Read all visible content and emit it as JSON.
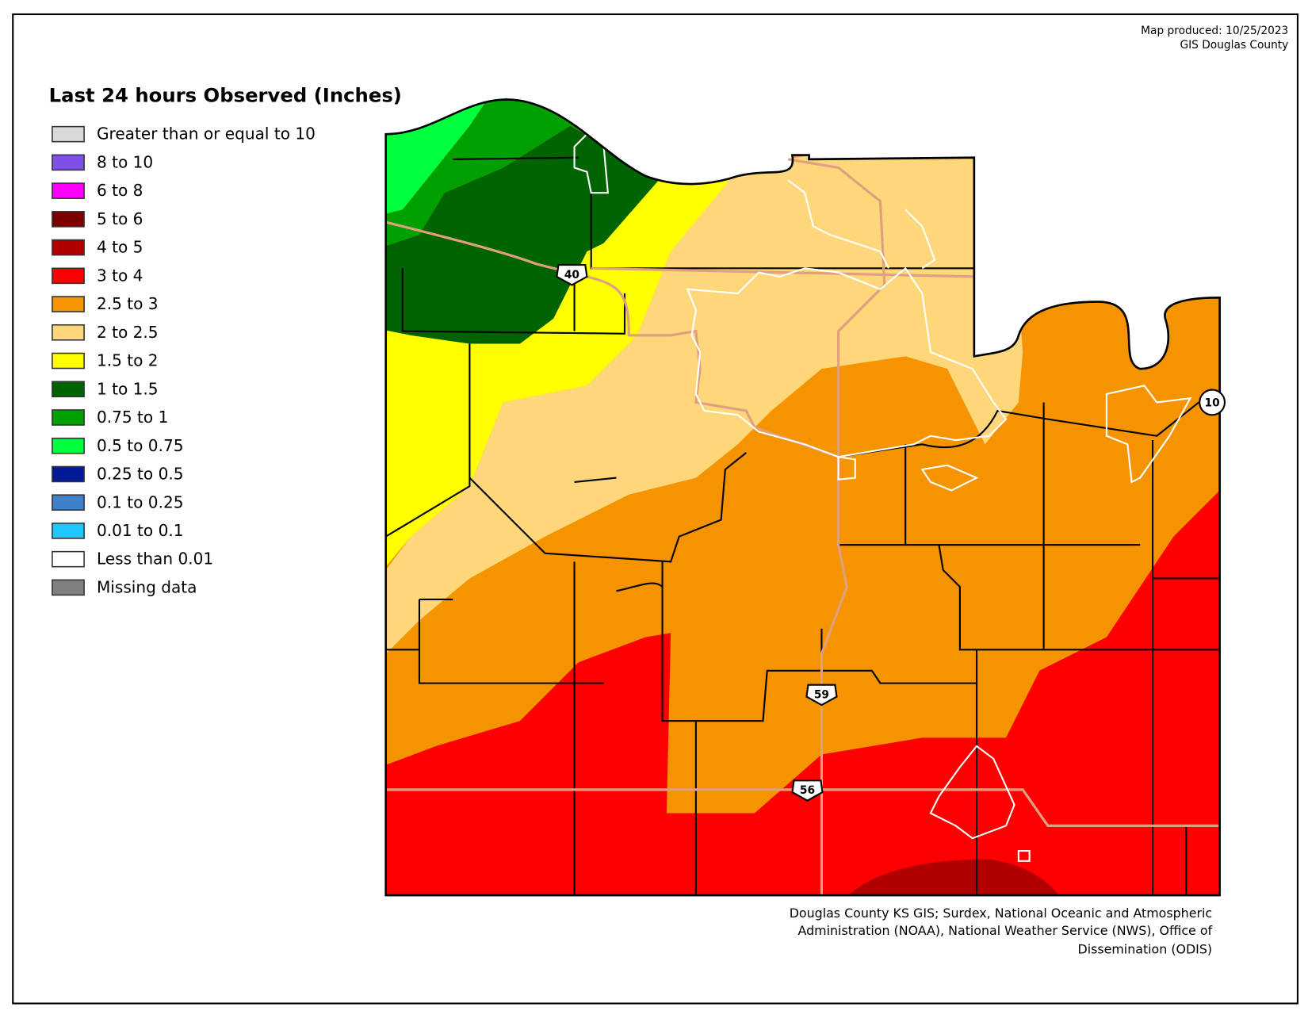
{
  "header": {
    "produced": "Map produced: 10/25/2023",
    "agency": "GIS Douglas County"
  },
  "legend": {
    "title": "Last 24 hours Observed (Inches)",
    "items": [
      {
        "label": "Greater than or equal to 10",
        "color": "#d9d9d9"
      },
      {
        "label": "8 to 10",
        "color": "#7e50e6"
      },
      {
        "label": "6 to 8",
        "color": "#ff00ff"
      },
      {
        "label": "5 to 6",
        "color": "#7a0000"
      },
      {
        "label": "4 to 5",
        "color": "#b00000"
      },
      {
        "label": "3 to 4",
        "color": "#ff0000"
      },
      {
        "label": "2.5 to 3",
        "color": "#f59400"
      },
      {
        "label": "2 to 2.5",
        "color": "#fdd77a"
      },
      {
        "label": "1.5 to 2",
        "color": "#ffff00"
      },
      {
        "label": "1 to 1.5",
        "color": "#006400"
      },
      {
        "label": "0.75 to 1",
        "color": "#00a000"
      },
      {
        "label": "0.5 to 0.75",
        "color": "#00ff3c"
      },
      {
        "label": "0.25 to 0.5",
        "color": "#001a99"
      },
      {
        "label": "0.1 to 0.25",
        "color": "#3d80cc"
      },
      {
        "label": "0.01 to 0.1",
        "color": "#1ec8ff"
      },
      {
        "label": "Less than 0.01",
        "color": "#ffffff"
      },
      {
        "label": "Missing data",
        "color": "#808080"
      }
    ]
  },
  "routes": [
    {
      "label": "40"
    },
    {
      "label": "59"
    },
    {
      "label": "56"
    },
    {
      "label": "10"
    }
  ],
  "credit": [
    "Douglas County KS GIS; Surdex, National Oceanic and Atmospheric",
    "Administration (NOAA), National Weather Service (NWS), Office of",
    "Dissemination (ODIS)"
  ]
}
